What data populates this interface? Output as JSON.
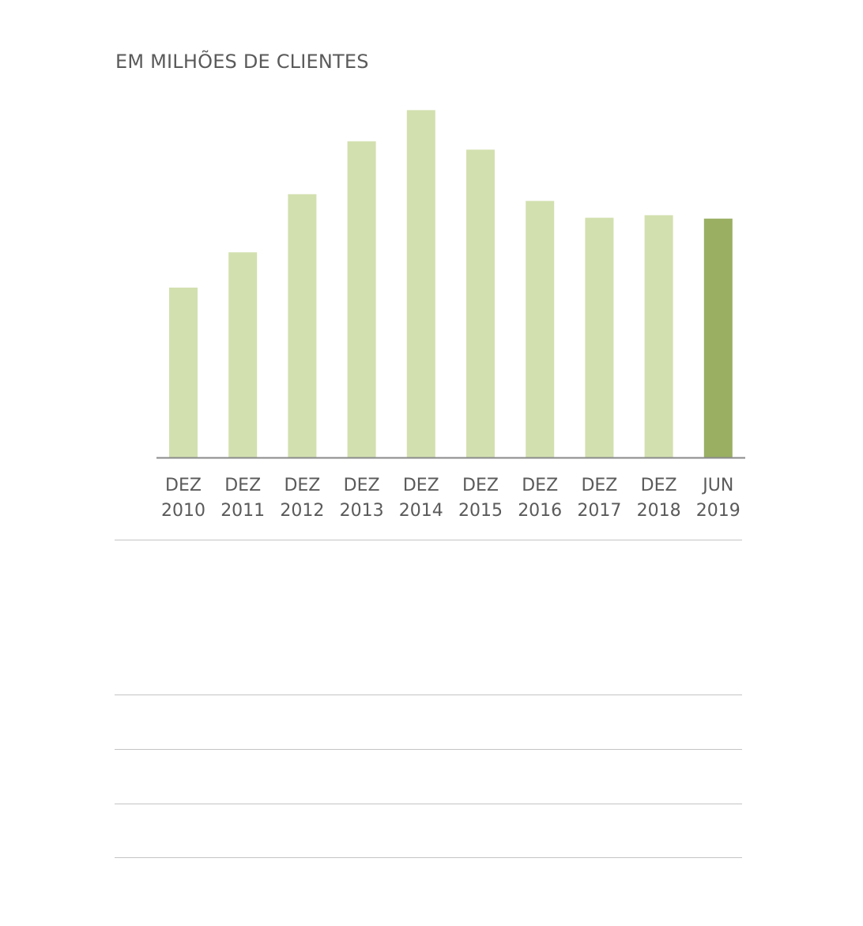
{
  "chart_data": {
    "type": "bar",
    "title": "EM MILHÕES DE CLIENTES",
    "xlabel": "",
    "ylabel": "",
    "categories": [
      [
        "DEZ",
        "2010"
      ],
      [
        "DEZ",
        "2011"
      ],
      [
        "DEZ",
        "2012"
      ],
      [
        "DEZ",
        "2013"
      ],
      [
        "DEZ",
        "2014"
      ],
      [
        "DEZ",
        "2015"
      ],
      [
        "DEZ",
        "2016"
      ],
      [
        "DEZ",
        "2017"
      ],
      [
        "DEZ",
        "2018"
      ],
      [
        "JUN",
        "2019"
      ]
    ],
    "values": [
      20.2,
      24.4,
      31.3,
      37.6,
      41.3,
      36.6,
      30.5,
      28.5,
      28.8,
      28.4
    ],
    "ylim": [
      0,
      45
    ],
    "grid": false,
    "colors": {
      "default": "#d2e0af",
      "highlight": "#9aaf62",
      "axis": "#8a8a8a",
      "text": "#5a5a5a",
      "rule": "#c4c4c4"
    },
    "highlight_index": 9
  }
}
